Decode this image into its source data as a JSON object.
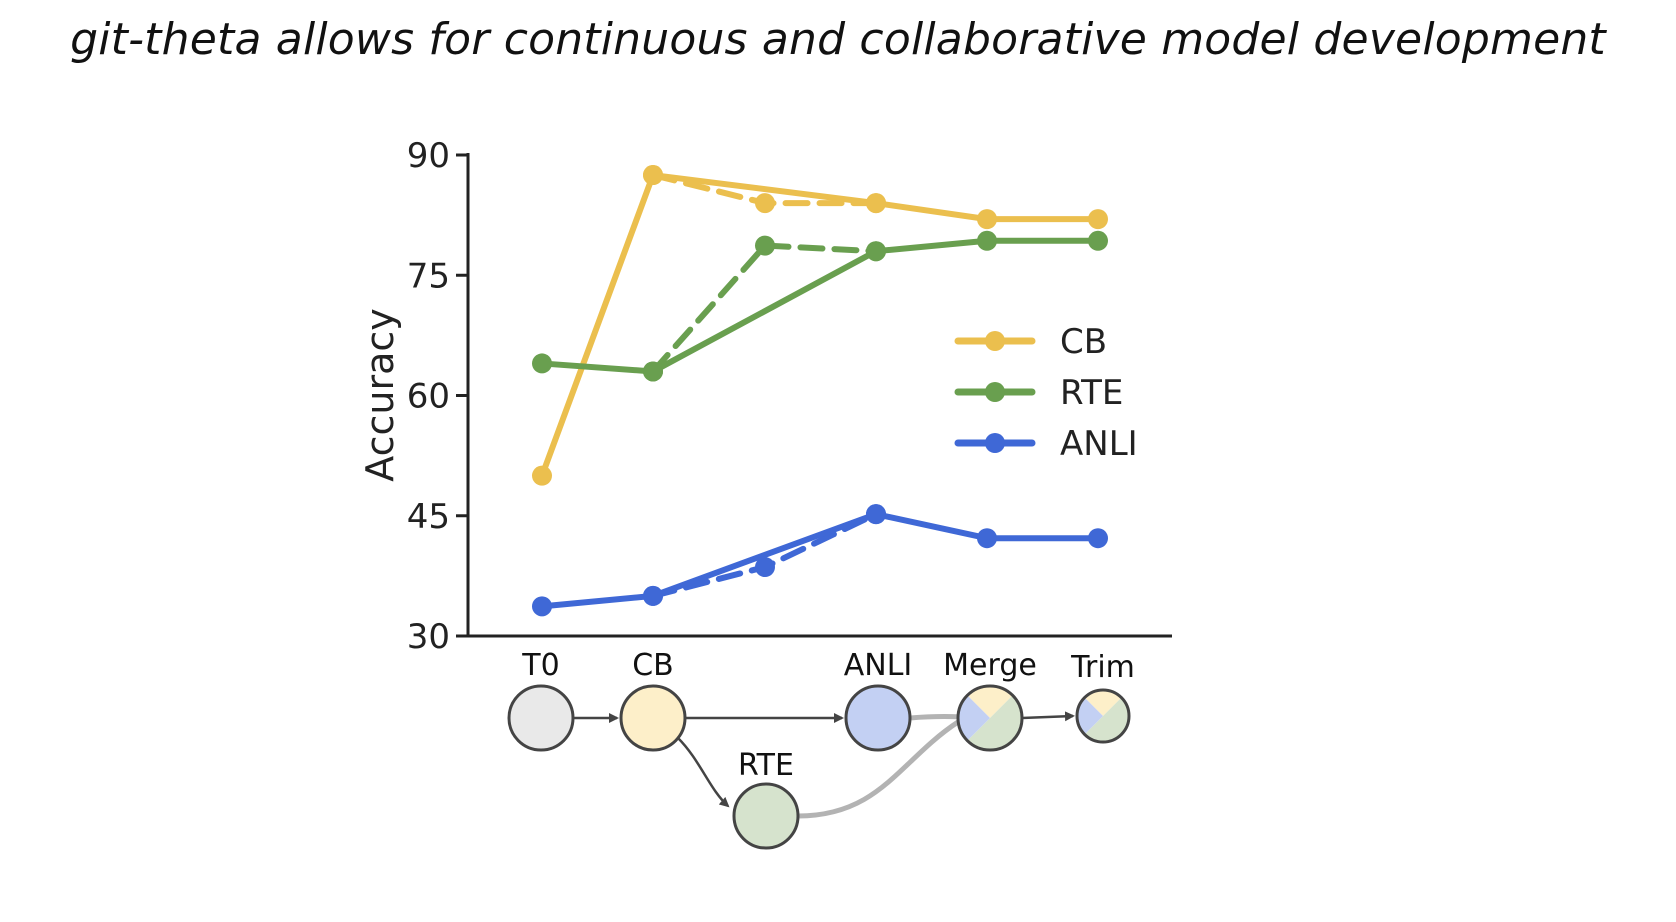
{
  "title": "git-theta allows for continuous and collaborative model development",
  "colors": {
    "CB": "#ebbf4e",
    "RTE": "#699f4f",
    "ANLI": "#3f68d6",
    "axis": "#222222"
  },
  "chart_data": {
    "type": "line",
    "title": "git-theta allows for continuous and collaborative model development",
    "ylabel": "Accuracy",
    "xlabel": "",
    "ylim": [
      30,
      90
    ],
    "yticks": [
      30,
      45,
      60,
      75,
      90
    ],
    "x_positions": [
      0,
      1,
      2,
      3,
      4,
      5
    ],
    "legend": {
      "placement": "right",
      "entries": [
        "CB",
        "RTE",
        "ANLI"
      ]
    },
    "series": [
      {
        "name": "CB",
        "style": "solid",
        "x": [
          0,
          1,
          3,
          4,
          5
        ],
        "y": [
          50,
          87.5,
          84,
          82,
          82
        ]
      },
      {
        "name": "CB",
        "style": "dashed",
        "x": [
          1,
          2,
          3
        ],
        "y": [
          87.5,
          84,
          84
        ]
      },
      {
        "name": "RTE",
        "style": "solid",
        "x": [
          0,
          1,
          3,
          4,
          5
        ],
        "y": [
          64,
          63,
          78,
          79.3,
          79.3
        ]
      },
      {
        "name": "RTE",
        "style": "dashed",
        "x": [
          1,
          2,
          3
        ],
        "y": [
          63,
          78.7,
          78
        ]
      },
      {
        "name": "ANLI",
        "style": "solid",
        "x": [
          0,
          1,
          3,
          4,
          5
        ],
        "y": [
          33.7,
          35,
          45.2,
          42.2,
          42.2
        ]
      },
      {
        "name": "ANLI",
        "style": "dashed",
        "x": [
          1,
          2,
          3
        ],
        "y": [
          35,
          38.6,
          45.2
        ]
      }
    ],
    "graph": {
      "nodes": [
        {
          "id": "T0",
          "label": "T0",
          "fill": "#e9e9e9"
        },
        {
          "id": "CB",
          "label": "CB",
          "fill": "#fdefc9"
        },
        {
          "id": "RTE",
          "label": "RTE",
          "fill": "#d6e3cd"
        },
        {
          "id": "ANLI",
          "label": "ANLI",
          "fill": "#c3d0f3"
        },
        {
          "id": "Merge",
          "label": "Merge"
        },
        {
          "id": "Trim",
          "label": "Trim"
        }
      ],
      "edges": [
        {
          "from": "T0",
          "to": "CB"
        },
        {
          "from": "CB",
          "to": "ANLI"
        },
        {
          "from": "CB",
          "to": "RTE"
        },
        {
          "from": "ANLI",
          "to": "Merge"
        },
        {
          "from": "RTE",
          "to": "Merge"
        },
        {
          "from": "Merge",
          "to": "Trim"
        }
      ]
    }
  }
}
